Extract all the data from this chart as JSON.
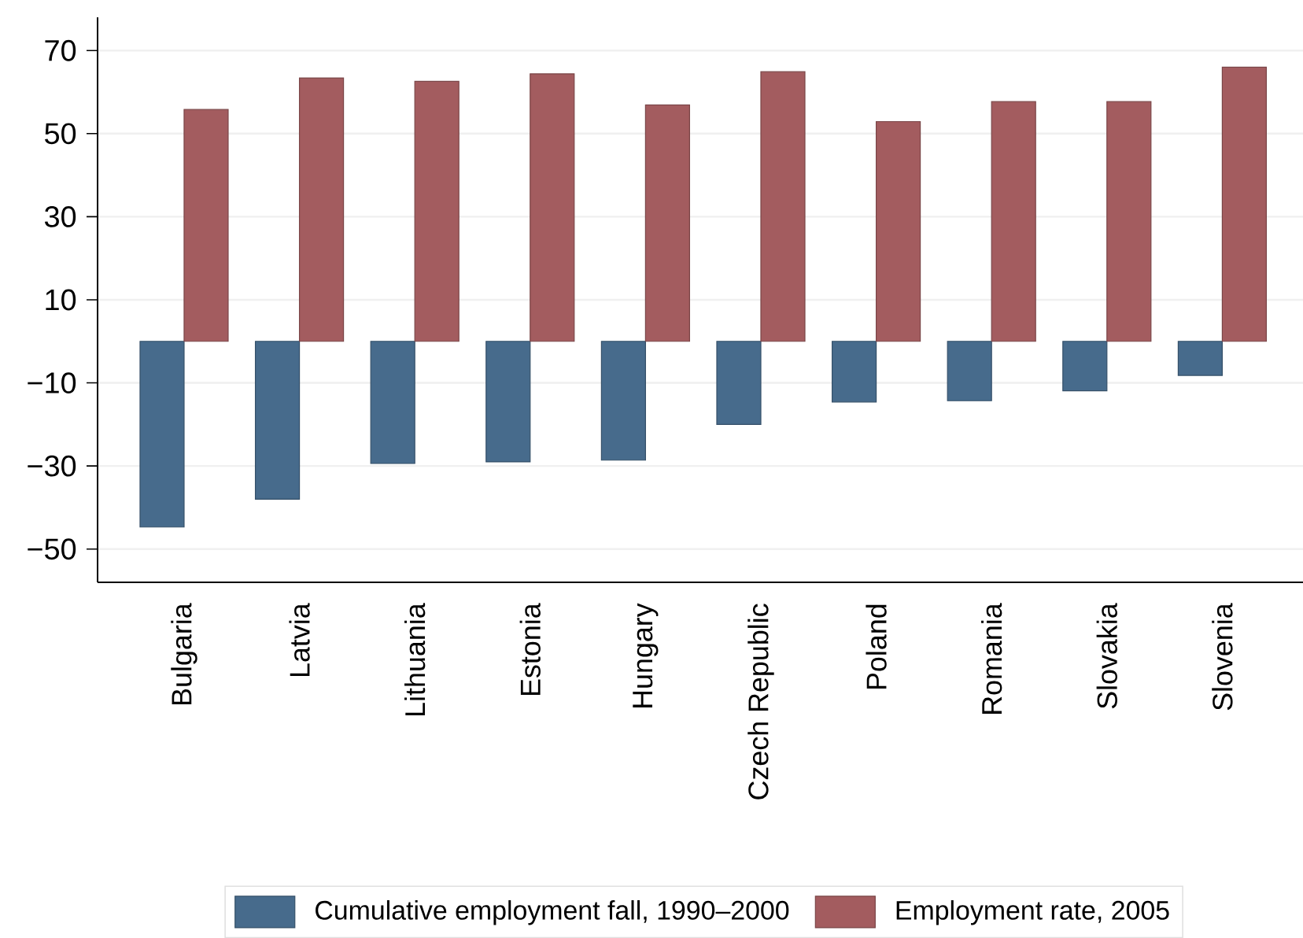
{
  "chart_data": {
    "type": "bar",
    "categories": [
      "Bulgaria",
      "Latvia",
      "Lithuania",
      "Estonia",
      "Hungary",
      "Czech Republic",
      "Poland",
      "Romania",
      "Slovakia",
      "Slovenia"
    ],
    "series": [
      {
        "name": "Cumulative employment fall, 1990–2000",
        "color": "#476b8c",
        "values": [
          -44.7,
          -38.0,
          -29.4,
          -29.0,
          -28.6,
          -20.0,
          -14.6,
          -14.3,
          -11.9,
          -8.2
        ]
      },
      {
        "name": "Employment rate, 2005",
        "color": "#a35c5f",
        "values": [
          55.8,
          63.4,
          62.6,
          64.4,
          56.9,
          64.9,
          52.9,
          57.7,
          57.7,
          66.0
        ]
      }
    ],
    "ylim": [
      -58,
      78
    ],
    "yticks": [
      {
        "value": -50,
        "label": "−50"
      },
      {
        "value": -30,
        "label": "−30"
      },
      {
        "value": -10,
        "label": "−10"
      },
      10,
      30,
      50,
      70
    ],
    "grid": "y",
    "legend": "bottom"
  }
}
